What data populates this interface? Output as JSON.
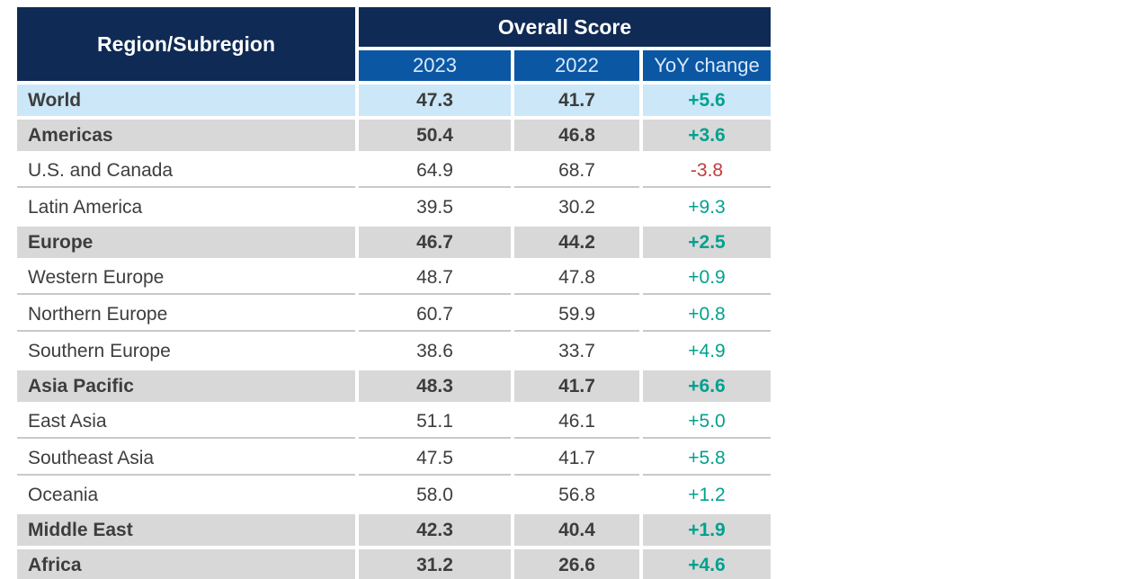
{
  "colors": {
    "navy": "#0f2a54",
    "blue": "#0b57a4",
    "light_blue": "#cbe7f8",
    "row_gray": "#d8d8d8",
    "teal": "#00a18f",
    "red": "#c43a3d",
    "text_dark": "#3d3d3d",
    "rule_gray": "#c9c9c9",
    "subhead_text": "#d9e9fa"
  },
  "table": {
    "header": {
      "region_label": "Region/Subregion",
      "group_label": "Overall Score",
      "columns": [
        "2023",
        "2022",
        "YoY change"
      ]
    },
    "rows": [
      {
        "name": "World",
        "v2023": "47.3",
        "v2022": "41.7",
        "yoy": "+5.6",
        "style": "world"
      },
      {
        "name": "Americas",
        "v2023": "50.4",
        "v2022": "46.8",
        "yoy": "+3.6",
        "style": "region"
      },
      {
        "name": "U.S. and Canada",
        "v2023": "64.9",
        "v2022": "68.7",
        "yoy": "-3.8",
        "style": "sub"
      },
      {
        "name": "Latin America",
        "v2023": "39.5",
        "v2022": "30.2",
        "yoy": "+9.3",
        "style": "sub"
      },
      {
        "name": "Europe",
        "v2023": "46.7",
        "v2022": "44.2",
        "yoy": "+2.5",
        "style": "region"
      },
      {
        "name": "Western Europe",
        "v2023": "48.7",
        "v2022": "47.8",
        "yoy": "+0.9",
        "style": "sub"
      },
      {
        "name": "Northern Europe",
        "v2023": "60.7",
        "v2022": "59.9",
        "yoy": "+0.8",
        "style": "sub"
      },
      {
        "name": "Southern Europe",
        "v2023": "38.6",
        "v2022": "33.7",
        "yoy": "+4.9",
        "style": "sub"
      },
      {
        "name": "Asia Pacific",
        "v2023": "48.3",
        "v2022": "41.7",
        "yoy": "+6.6",
        "style": "region"
      },
      {
        "name": "East Asia",
        "v2023": "51.1",
        "v2022": "46.1",
        "yoy": "+5.0",
        "style": "sub"
      },
      {
        "name": "Southeast Asia",
        "v2023": "47.5",
        "v2022": "41.7",
        "yoy": "+5.8",
        "style": "sub"
      },
      {
        "name": "Oceania",
        "v2023": "58.0",
        "v2022": "56.8",
        "yoy": "+1.2",
        "style": "sub"
      },
      {
        "name": "Middle East",
        "v2023": "42.3",
        "v2022": "40.4",
        "yoy": "+1.9",
        "style": "region"
      },
      {
        "name": "Africa",
        "v2023": "31.2",
        "v2022": "26.6",
        "yoy": "+4.6",
        "style": "region"
      }
    ]
  },
  "chart_data": {
    "type": "table",
    "title": "Overall Score",
    "columns": [
      "Region/Subregion",
      "2023",
      "2022",
      "YoY change"
    ],
    "rows": [
      [
        "World",
        47.3,
        41.7,
        "+5.6"
      ],
      [
        "Americas",
        50.4,
        46.8,
        "+3.6"
      ],
      [
        "U.S. and Canada",
        64.9,
        68.7,
        "-3.8"
      ],
      [
        "Latin America",
        39.5,
        30.2,
        "+9.3"
      ],
      [
        "Europe",
        46.7,
        44.2,
        "+2.5"
      ],
      [
        "Western Europe",
        48.7,
        47.8,
        "+0.9"
      ],
      [
        "Northern Europe",
        60.7,
        59.9,
        "+0.8"
      ],
      [
        "Southern Europe",
        38.6,
        33.7,
        "+4.9"
      ],
      [
        "Asia Pacific",
        48.3,
        41.7,
        "+6.6"
      ],
      [
        "East Asia",
        51.1,
        46.1,
        "+5.0"
      ],
      [
        "Southeast Asia",
        47.5,
        41.7,
        "+5.8"
      ],
      [
        "Oceania",
        58.0,
        56.8,
        "+1.2"
      ],
      [
        "Middle East",
        42.3,
        40.4,
        "+1.9"
      ],
      [
        "Africa",
        31.2,
        26.6,
        "+4.6"
      ]
    ],
    "notes": "Bold emphasized rows: World (light blue), Americas, Europe, Asia Pacific, Middle East, Africa (gray). Positive YoY values teal, negative red."
  }
}
